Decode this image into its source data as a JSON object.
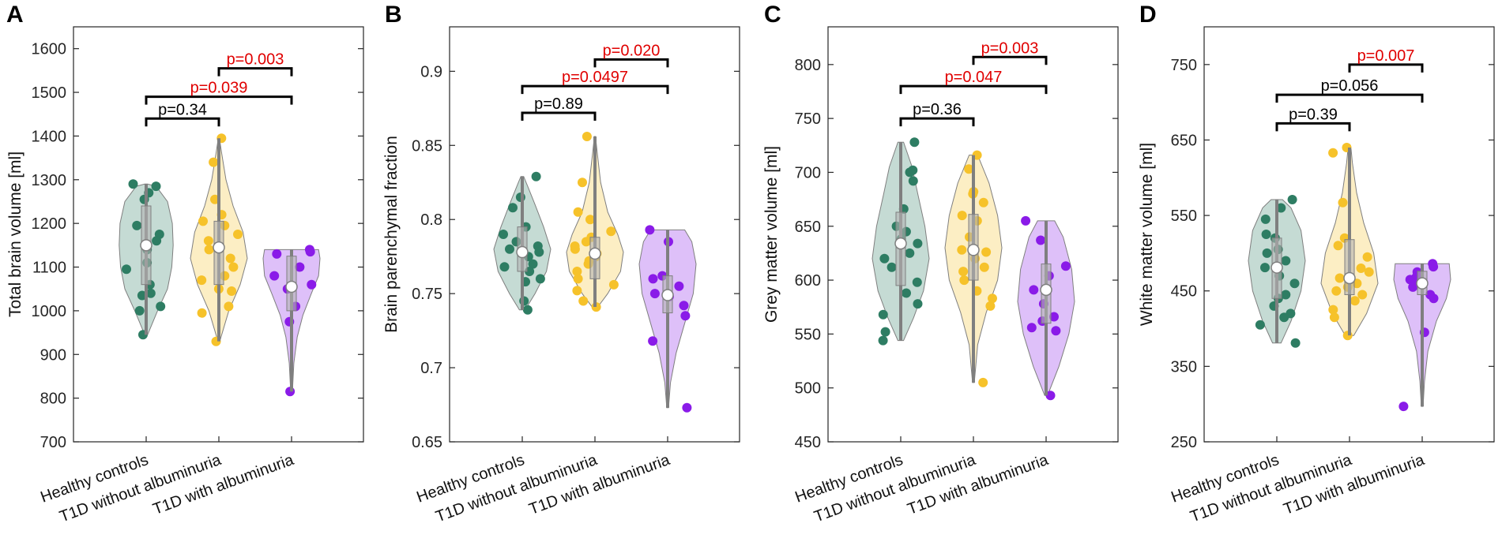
{
  "colors": {
    "healthy": "#2e7d63",
    "t1d_without": "#f6c22a",
    "t1d_with": "#8a1be8",
    "significant": "#e00000",
    "nonsignificant": "#000000"
  },
  "chart_data": [
    {
      "type": "violin",
      "panel": "A",
      "ylabel": "Total brain volume [ml]",
      "ylim": [
        700,
        1650
      ],
      "yticks": [
        700,
        800,
        900,
        1000,
        1100,
        1200,
        1300,
        1400,
        1500,
        1600
      ],
      "categories": [
        "Healthy controls",
        "T1D without albuminuria",
        "T1D with albuminuria"
      ],
      "groups": [
        {
          "name": "Healthy controls",
          "color_key": "healthy",
          "min": 945,
          "max": 1290,
          "q1": 1060,
          "q3": 1240,
          "median": 1150,
          "points": [
            1290,
            1285,
            1270,
            1255,
            1195,
            1175,
            1160,
            1150,
            1140,
            1110,
            1095,
            1060,
            1040,
            1035,
            1010,
            1000,
            945
          ],
          "violin": [
            [
              945,
              0.05
            ],
            [
              1000,
              0.4
            ],
            [
              1050,
              0.75
            ],
            [
              1100,
              0.9
            ],
            [
              1150,
              0.95
            ],
            [
              1200,
              0.92
            ],
            [
              1250,
              0.75
            ],
            [
              1285,
              0.35
            ],
            [
              1290,
              0.05
            ]
          ]
        },
        {
          "name": "T1D without albuminuria",
          "color_key": "t1d_without",
          "min": 930,
          "max": 1395,
          "q1": 1060,
          "q3": 1205,
          "median": 1145,
          "points": [
            1395,
            1340,
            1255,
            1220,
            1205,
            1195,
            1175,
            1160,
            1140,
            1120,
            1100,
            1080,
            1070,
            1050,
            1045,
            1010,
            995,
            930
          ],
          "violin": [
            [
              930,
              0.03
            ],
            [
              1000,
              0.35
            ],
            [
              1060,
              0.75
            ],
            [
              1120,
              1.0
            ],
            [
              1180,
              0.85
            ],
            [
              1240,
              0.5
            ],
            [
              1300,
              0.25
            ],
            [
              1360,
              0.1
            ],
            [
              1395,
              0.02
            ]
          ]
        },
        {
          "name": "T1D with albuminuria",
          "color_key": "t1d_with",
          "min": 815,
          "max": 1140,
          "q1": 1000,
          "q3": 1125,
          "median": 1055,
          "points": [
            1140,
            1135,
            1130,
            1100,
            1080,
            1060,
            1055,
            1050,
            1010,
            975,
            815
          ],
          "violin": [
            [
              815,
              0.03
            ],
            [
              880,
              0.08
            ],
            [
              940,
              0.2
            ],
            [
              990,
              0.4
            ],
            [
              1040,
              0.7
            ],
            [
              1080,
              0.95
            ],
            [
              1120,
              1.0
            ],
            [
              1140,
              0.95
            ]
          ]
        }
      ],
      "comparisons": [
        {
          "from": 0,
          "to": 1,
          "y": 1440,
          "label": "p=0.34",
          "significant": false
        },
        {
          "from": 0,
          "to": 2,
          "y": 1490,
          "label": "p=0.039",
          "significant": true
        },
        {
          "from": 1,
          "to": 2,
          "y": 1555,
          "label": "p=0.003",
          "significant": true
        }
      ]
    },
    {
      "type": "violin",
      "panel": "B",
      "ylabel": "Brain parenchymal fraction",
      "ylim": [
        0.65,
        0.93
      ],
      "yticks": [
        0.65,
        0.7,
        0.75,
        0.8,
        0.85,
        0.9
      ],
      "categories": [
        "Healthy controls",
        "T1D without albuminuria",
        "T1D with albuminuria"
      ],
      "groups": [
        {
          "name": "Healthy controls",
          "color_key": "healthy",
          "min": 0.739,
          "max": 0.829,
          "q1": 0.765,
          "q3": 0.795,
          "median": 0.778,
          "points": [
            0.829,
            0.815,
            0.808,
            0.795,
            0.79,
            0.785,
            0.782,
            0.78,
            0.778,
            0.775,
            0.77,
            0.768,
            0.765,
            0.76,
            0.758,
            0.745,
            0.739
          ],
          "violin": [
            [
              0.739,
              0.1
            ],
            [
              0.75,
              0.45
            ],
            [
              0.765,
              0.85
            ],
            [
              0.78,
              1.0
            ],
            [
              0.795,
              0.75
            ],
            [
              0.81,
              0.45
            ],
            [
              0.822,
              0.2
            ],
            [
              0.829,
              0.05
            ]
          ]
        },
        {
          "name": "T1D without albuminuria",
          "color_key": "t1d_without",
          "min": 0.741,
          "max": 0.856,
          "q1": 0.76,
          "q3": 0.788,
          "median": 0.777,
          "points": [
            0.856,
            0.825,
            0.805,
            0.8,
            0.792,
            0.788,
            0.785,
            0.782,
            0.78,
            0.777,
            0.775,
            0.772,
            0.77,
            0.765,
            0.76,
            0.756,
            0.752,
            0.745,
            0.741
          ],
          "violin": [
            [
              0.741,
              0.1
            ],
            [
              0.75,
              0.45
            ],
            [
              0.765,
              0.9
            ],
            [
              0.778,
              1.0
            ],
            [
              0.79,
              0.8
            ],
            [
              0.805,
              0.45
            ],
            [
              0.825,
              0.2
            ],
            [
              0.845,
              0.08
            ],
            [
              0.856,
              0.02
            ]
          ]
        },
        {
          "name": "T1D with albuminuria",
          "color_key": "t1d_with",
          "min": 0.673,
          "max": 0.793,
          "q1": 0.737,
          "q3": 0.762,
          "median": 0.749,
          "points": [
            0.793,
            0.785,
            0.762,
            0.76,
            0.755,
            0.75,
            0.748,
            0.742,
            0.735,
            0.718,
            0.673
          ],
          "violin": [
            [
              0.673,
              0.03
            ],
            [
              0.69,
              0.1
            ],
            [
              0.71,
              0.3
            ],
            [
              0.73,
              0.6
            ],
            [
              0.75,
              0.9
            ],
            [
              0.77,
              1.0
            ],
            [
              0.785,
              0.85
            ],
            [
              0.793,
              0.6
            ]
          ]
        }
      ],
      "comparisons": [
        {
          "from": 0,
          "to": 1,
          "y": 0.872,
          "label": "p=0.89",
          "significant": false
        },
        {
          "from": 0,
          "to": 2,
          "y": 0.89,
          "label": "p=0.0497",
          "significant": true
        },
        {
          "from": 1,
          "to": 2,
          "y": 0.908,
          "label": "p=0.020",
          "significant": true
        }
      ]
    },
    {
      "type": "violin",
      "panel": "C",
      "ylabel": "Grey matter volume [ml]",
      "ylim": [
        450,
        835
      ],
      "yticks": [
        450,
        500,
        550,
        600,
        650,
        700,
        750,
        800
      ],
      "categories": [
        "Healthy controls",
        "T1D without albuminuria",
        "T1D with albuminuria"
      ],
      "groups": [
        {
          "name": "Healthy controls",
          "color_key": "healthy",
          "min": 544,
          "max": 728,
          "q1": 595,
          "q3": 663,
          "median": 634,
          "points": [
            728,
            702,
            700,
            692,
            666,
            650,
            645,
            638,
            634,
            625,
            620,
            612,
            598,
            588,
            578,
            568,
            552,
            544
          ],
          "violin": [
            [
              544,
              0.1
            ],
            [
              565,
              0.45
            ],
            [
              590,
              0.8
            ],
            [
              620,
              1.0
            ],
            [
              650,
              0.85
            ],
            [
              680,
              0.6
            ],
            [
              705,
              0.4
            ],
            [
              728,
              0.1
            ]
          ]
        },
        {
          "name": "T1D without albuminuria",
          "color_key": "t1d_without",
          "min": 505,
          "max": 716,
          "q1": 600,
          "q3": 661,
          "median": 628,
          "points": [
            716,
            703,
            682,
            680,
            672,
            660,
            655,
            640,
            628,
            626,
            620,
            612,
            608,
            600,
            590,
            583,
            576,
            505
          ],
          "violin": [
            [
              505,
              0.03
            ],
            [
              540,
              0.15
            ],
            [
              570,
              0.45
            ],
            [
              600,
              0.85
            ],
            [
              630,
              1.0
            ],
            [
              660,
              0.85
            ],
            [
              690,
              0.55
            ],
            [
              716,
              0.15
            ]
          ]
        },
        {
          "name": "T1D with albuminuria",
          "color_key": "t1d_with",
          "min": 493,
          "max": 655,
          "q1": 560,
          "q3": 615,
          "median": 591,
          "points": [
            655,
            637,
            613,
            604,
            591,
            578,
            566,
            562,
            556,
            553,
            493
          ],
          "violin": [
            [
              493,
              0.05
            ],
            [
              520,
              0.45
            ],
            [
              550,
              0.8
            ],
            [
              580,
              1.0
            ],
            [
              610,
              0.9
            ],
            [
              640,
              0.6
            ],
            [
              655,
              0.3
            ]
          ]
        }
      ],
      "comparisons": [
        {
          "from": 0,
          "to": 1,
          "y": 750,
          "label": "p=0.36",
          "significant": false
        },
        {
          "from": 0,
          "to": 2,
          "y": 780,
          "label": "p=0.047",
          "significant": true
        },
        {
          "from": 1,
          "to": 2,
          "y": 807,
          "label": "p=0.003",
          "significant": true
        }
      ]
    },
    {
      "type": "violin",
      "panel": "D",
      "ylabel": "White matter volume [ml]",
      "ylim": [
        250,
        800
      ],
      "yticks": [
        250,
        350,
        450,
        550,
        650,
        750
      ],
      "categories": [
        "Healthy controls",
        "T1D without albuminuria",
        "T1D with albuminuria"
      ],
      "groups": [
        {
          "name": "Healthy controls",
          "color_key": "healthy",
          "min": 381,
          "max": 571,
          "q1": 440,
          "q3": 520,
          "median": 481,
          "points": [
            571,
            560,
            545,
            525,
            520,
            505,
            500,
            490,
            481,
            470,
            460,
            445,
            440,
            430,
            420,
            415,
            405,
            381
          ],
          "violin": [
            [
              381,
              0.15
            ],
            [
              410,
              0.5
            ],
            [
              450,
              0.85
            ],
            [
              490,
              1.0
            ],
            [
              530,
              0.85
            ],
            [
              560,
              0.5
            ],
            [
              571,
              0.2
            ]
          ]
        },
        {
          "name": "T1D without albuminuria",
          "color_key": "t1d_without",
          "min": 391,
          "max": 640,
          "q1": 445,
          "q3": 518,
          "median": 467,
          "points": [
            640,
            633,
            567,
            520,
            510,
            495,
            480,
            475,
            467,
            460,
            455,
            450,
            445,
            437,
            425,
            415,
            391
          ],
          "violin": [
            [
              391,
              0.15
            ],
            [
              420,
              0.6
            ],
            [
              460,
              1.0
            ],
            [
              500,
              0.85
            ],
            [
              540,
              0.5
            ],
            [
              580,
              0.25
            ],
            [
              620,
              0.1
            ],
            [
              640,
              0.05
            ]
          ]
        },
        {
          "name": "T1D with albuminuria",
          "color_key": "t1d_with",
          "min": 297,
          "max": 486,
          "q1": 445,
          "q3": 476,
          "median": 460,
          "points": [
            486,
            482,
            475,
            468,
            465,
            462,
            460,
            455,
            445,
            440,
            395,
            297
          ],
          "violin": [
            [
              297,
              0.03
            ],
            [
              330,
              0.08
            ],
            [
              370,
              0.2
            ],
            [
              410,
              0.5
            ],
            [
              440,
              0.85
            ],
            [
              465,
              1.0
            ],
            [
              486,
              0.95
            ]
          ]
        }
      ],
      "comparisons": [
        {
          "from": 0,
          "to": 1,
          "y": 672,
          "label": "p=0.39",
          "significant": false
        },
        {
          "from": 0,
          "to": 2,
          "y": 710,
          "label": "p=0.056",
          "significant": false
        },
        {
          "from": 1,
          "to": 2,
          "y": 750,
          "label": "p=0.007",
          "significant": true
        }
      ]
    }
  ]
}
